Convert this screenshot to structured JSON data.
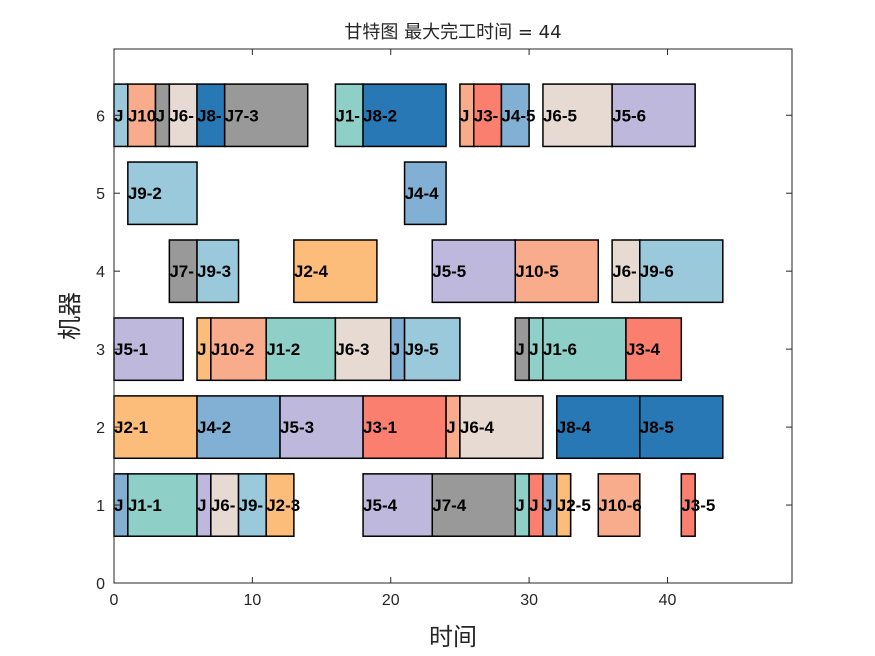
{
  "chart_data": {
    "type": "gantt",
    "title": "甘特图 最大完工时间 = 44",
    "xlabel": "时间",
    "ylabel": "机器",
    "xlim": [
      0,
      49
    ],
    "ylim": [
      0,
      6.85
    ],
    "xticks": [
      0,
      10,
      20,
      30,
      40
    ],
    "yticks": [
      0,
      1,
      2,
      3,
      4,
      5,
      6
    ],
    "grid": false,
    "job_colors": {
      "J1": "#8ecfc8",
      "J2": "#fdbd7a",
      "J3": "#fa7f6f",
      "J4": "#81b0d4",
      "J5": "#bdb8dc",
      "J6": "#e7dad3",
      "J7": "#999999",
      "J8": "#2878b5",
      "J9": "#9ac9db",
      "J10": "#f8ac8c"
    },
    "tasks": [
      {
        "machine": 6,
        "job": "J9",
        "label": "J",
        "start": 0,
        "end": 1
      },
      {
        "machine": 6,
        "job": "J10",
        "label": "J10",
        "start": 1,
        "end": 3
      },
      {
        "machine": 6,
        "job": "J7",
        "label": "J",
        "start": 3,
        "end": 4
      },
      {
        "machine": 6,
        "job": "J6",
        "label": "J6-",
        "start": 4,
        "end": 6
      },
      {
        "machine": 6,
        "job": "J8",
        "label": "J8-",
        "start": 6,
        "end": 8
      },
      {
        "machine": 6,
        "job": "J7",
        "label": "J7-3",
        "start": 8,
        "end": 14
      },
      {
        "machine": 6,
        "job": "J1",
        "label": "J1-",
        "start": 16,
        "end": 18
      },
      {
        "machine": 6,
        "job": "J8",
        "label": "J8-2",
        "start": 18,
        "end": 24
      },
      {
        "machine": 6,
        "job": "J10",
        "label": "J",
        "start": 25,
        "end": 26
      },
      {
        "machine": 6,
        "job": "J3",
        "label": "J3-",
        "start": 26,
        "end": 28
      },
      {
        "machine": 6,
        "job": "J4",
        "label": "J4-5",
        "start": 28,
        "end": 30
      },
      {
        "machine": 6,
        "job": "J6",
        "label": "J6-5",
        "start": 31,
        "end": 36
      },
      {
        "machine": 6,
        "job": "J5",
        "label": "J5-6",
        "start": 36,
        "end": 42
      },
      {
        "machine": 5,
        "job": "J9",
        "label": "J9-2",
        "start": 1,
        "end": 6
      },
      {
        "machine": 5,
        "job": "J4",
        "label": "J4-4",
        "start": 21,
        "end": 24
      },
      {
        "machine": 4,
        "job": "J7",
        "label": "J7-",
        "start": 4,
        "end": 6
      },
      {
        "machine": 4,
        "job": "J9",
        "label": "J9-3",
        "start": 6,
        "end": 9
      },
      {
        "machine": 4,
        "job": "J2",
        "label": "J2-4",
        "start": 13,
        "end": 19
      },
      {
        "machine": 4,
        "job": "J5",
        "label": "J5-5",
        "start": 23,
        "end": 29
      },
      {
        "machine": 4,
        "job": "J10",
        "label": "J10-5",
        "start": 29,
        "end": 35
      },
      {
        "machine": 4,
        "job": "J6",
        "label": "J6-",
        "start": 36,
        "end": 38
      },
      {
        "machine": 4,
        "job": "J9",
        "label": "J9-6",
        "start": 38,
        "end": 44
      },
      {
        "machine": 3,
        "job": "J5",
        "label": "J5-1",
        "start": 0,
        "end": 5
      },
      {
        "machine": 3,
        "job": "J2",
        "label": "J",
        "start": 6,
        "end": 7
      },
      {
        "machine": 3,
        "job": "J10",
        "label": "J10-2",
        "start": 7,
        "end": 11
      },
      {
        "machine": 3,
        "job": "J1",
        "label": "J1-2",
        "start": 11,
        "end": 16
      },
      {
        "machine": 3,
        "job": "J6",
        "label": "J6-3",
        "start": 16,
        "end": 20
      },
      {
        "machine": 3,
        "job": "J4",
        "label": "J",
        "start": 20,
        "end": 21
      },
      {
        "machine": 3,
        "job": "J9",
        "label": "J9-5",
        "start": 21,
        "end": 25
      },
      {
        "machine": 3,
        "job": "J7",
        "label": "J",
        "start": 29,
        "end": 30
      },
      {
        "machine": 3,
        "job": "J1",
        "label": "J",
        "start": 30,
        "end": 31
      },
      {
        "machine": 3,
        "job": "J1",
        "label": "J1-6",
        "start": 31,
        "end": 37
      },
      {
        "machine": 3,
        "job": "J3",
        "label": "J3-4",
        "start": 37,
        "end": 41
      },
      {
        "machine": 2,
        "job": "J2",
        "label": "J2-1",
        "start": 0,
        "end": 6
      },
      {
        "machine": 2,
        "job": "J4",
        "label": "J4-2",
        "start": 6,
        "end": 12
      },
      {
        "machine": 2,
        "job": "J5",
        "label": "J5-3",
        "start": 12,
        "end": 18
      },
      {
        "machine": 2,
        "job": "J3",
        "label": "J3-1",
        "start": 18,
        "end": 24
      },
      {
        "machine": 2,
        "job": "J10",
        "label": "J",
        "start": 24,
        "end": 25
      },
      {
        "machine": 2,
        "job": "J6",
        "label": "J6-4",
        "start": 25,
        "end": 31
      },
      {
        "machine": 2,
        "job": "J8",
        "label": "J8-4",
        "start": 32,
        "end": 38
      },
      {
        "machine": 2,
        "job": "J8",
        "label": "J8-5",
        "start": 38,
        "end": 44
      },
      {
        "machine": 1,
        "job": "J4",
        "label": "J",
        "start": 0,
        "end": 1
      },
      {
        "machine": 1,
        "job": "J1",
        "label": "J1-1",
        "start": 1,
        "end": 6
      },
      {
        "machine": 1,
        "job": "J5",
        "label": "J",
        "start": 6,
        "end": 7
      },
      {
        "machine": 1,
        "job": "J6",
        "label": "J6-",
        "start": 7,
        "end": 9
      },
      {
        "machine": 1,
        "job": "J9",
        "label": "J9-",
        "start": 9,
        "end": 11
      },
      {
        "machine": 1,
        "job": "J2",
        "label": "J2-3",
        "start": 11,
        "end": 13
      },
      {
        "machine": 1,
        "job": "J5",
        "label": "J5-4",
        "start": 18,
        "end": 23
      },
      {
        "machine": 1,
        "job": "J7",
        "label": "J7-4",
        "start": 23,
        "end": 29
      },
      {
        "machine": 1,
        "job": "J1",
        "label": "J",
        "start": 29,
        "end": 30
      },
      {
        "machine": 1,
        "job": "J3",
        "label": "J",
        "start": 30,
        "end": 31
      },
      {
        "machine": 1,
        "job": "J4",
        "label": "J",
        "start": 31,
        "end": 32
      },
      {
        "machine": 1,
        "job": "J8",
        "label": "J",
        "start": 32,
        "end": 33
      },
      {
        "machine": 1,
        "job": "J2",
        "label": "J2-5",
        "start": 32,
        "end": 33
      },
      {
        "machine": 1,
        "job": "J10",
        "label": "J10-6",
        "start": 35,
        "end": 38
      },
      {
        "machine": 1,
        "job": "J3",
        "label": "J3-5",
        "start": 41,
        "end": 42
      }
    ]
  }
}
